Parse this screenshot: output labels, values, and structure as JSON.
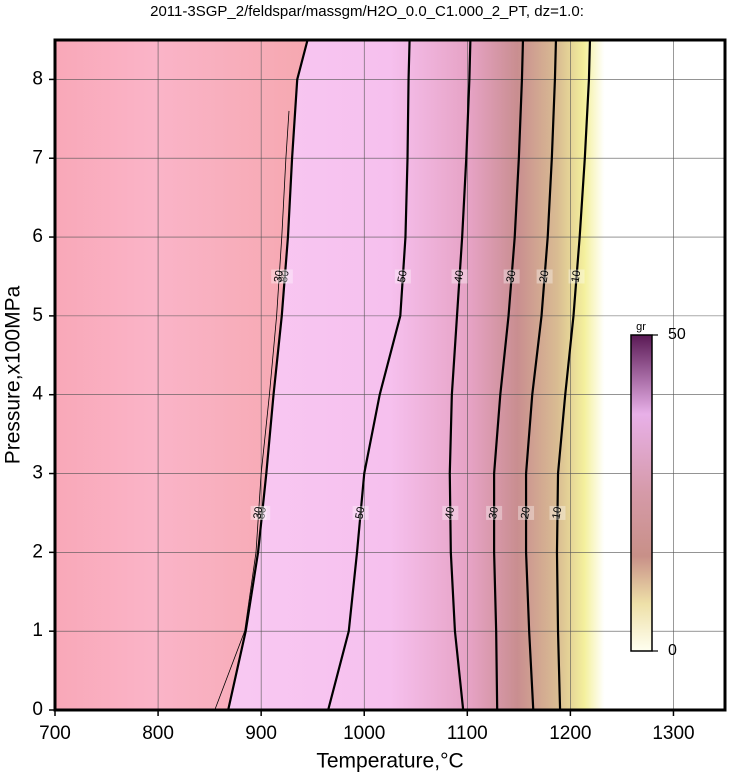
{
  "chart_data": {
    "type": "contour",
    "title": "2011-3SGP_2/feldspar/massgm/H2O_0.0_C1.000_2_PT, dz=1.0:",
    "x_label": "Temperature,°C",
    "y_label": "Pressure,x100MPa",
    "xlim": [
      700,
      1350
    ],
    "xticks": [
      700,
      800,
      900,
      1000,
      1100,
      1200,
      1300
    ],
    "ylim": [
      0,
      8.5
    ],
    "yticks": [
      0,
      1,
      2,
      3,
      4,
      5,
      6,
      7,
      8
    ],
    "grid": true,
    "contours": [
      {
        "label": "80",
        "x": [
          868,
          885,
          897,
          905,
          912,
          920,
          926,
          930,
          935,
          945
        ],
        "y": [
          0,
          1,
          2,
          3,
          4,
          5,
          6,
          7,
          8,
          8.5
        ]
      },
      {
        "label": "30",
        "x": [
          855,
          884,
          895,
          900,
          908,
          915,
          920,
          924,
          927
        ],
        "y": [
          0,
          1,
          2,
          3,
          4,
          5,
          6,
          7,
          7.6
        ]
      },
      {
        "label": "50",
        "x": [
          965,
          985,
          993,
          1000,
          1015,
          1035,
          1040,
          1042,
          1043,
          1044
        ],
        "y": [
          0,
          1,
          2,
          3,
          4,
          5,
          6,
          7,
          8,
          8.5
        ]
      },
      {
        "label": "40",
        "x": [
          1096,
          1088,
          1084,
          1083,
          1085,
          1090,
          1095,
          1099,
          1102,
          1103
        ],
        "y": [
          0,
          1,
          2,
          3,
          4,
          5,
          6,
          7,
          8,
          8.5
        ]
      },
      {
        "label": "30",
        "x": [
          1129,
          1128,
          1126,
          1126,
          1132,
          1140,
          1146,
          1150,
          1153,
          1154
        ],
        "y": [
          0,
          1,
          2,
          3,
          4,
          5,
          6,
          7,
          8,
          8.5
        ]
      },
      {
        "label": "20",
        "x": [
          1164,
          1160,
          1157,
          1157,
          1163,
          1172,
          1178,
          1182,
          1185,
          1186
        ],
        "y": [
          0,
          1,
          2,
          3,
          4,
          5,
          6,
          7,
          8,
          8.5
        ]
      },
      {
        "label": "10",
        "x": [
          1190,
          1188,
          1187,
          1188,
          1195,
          1203,
          1209,
          1214,
          1218,
          1219
        ],
        "y": [
          0,
          1,
          2,
          3,
          4,
          5,
          6,
          7,
          8,
          8.5
        ]
      }
    ],
    "colorbar": {
      "label": "gr",
      "lim": [
        0,
        50
      ],
      "ticks": [
        0,
        50
      ]
    }
  }
}
